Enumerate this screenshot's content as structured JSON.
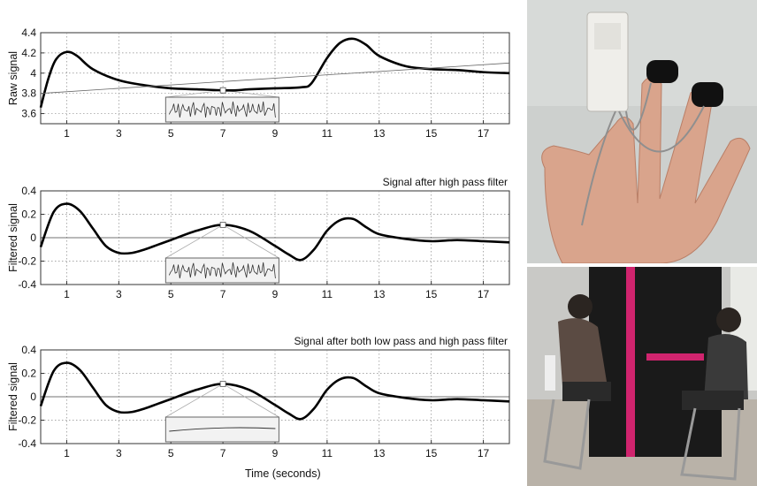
{
  "chart_data": [
    {
      "type": "line",
      "title": "",
      "ylabel": "Raw signal",
      "xlabel": "",
      "xlim": [
        0,
        18
      ],
      "ylim": [
        3.5,
        4.4
      ],
      "xticks": [
        "1",
        "3",
        "5",
        "7",
        "9",
        "11",
        "13",
        "15",
        "17"
      ],
      "yticks": [
        "3.6",
        "3.8",
        "4",
        "4.2",
        "4.4"
      ],
      "grid": true,
      "series": [
        {
          "style": "thick",
          "x": [
            0,
            0.3,
            0.6,
            1,
            1.4,
            2,
            3,
            4,
            5,
            6,
            7,
            7.5,
            8,
            9,
            10,
            10.4,
            11,
            11.5,
            12,
            12.5,
            13,
            14,
            15,
            16,
            17,
            18
          ],
          "y": [
            3.66,
            3.95,
            4.14,
            4.21,
            4.17,
            4.04,
            3.93,
            3.88,
            3.85,
            3.84,
            3.83,
            3.83,
            3.84,
            3.85,
            3.86,
            3.9,
            4.15,
            4.3,
            4.34,
            4.28,
            4.17,
            4.07,
            4.04,
            4.03,
            4.01,
            4.0
          ]
        },
        {
          "style": "trend",
          "x": [
            0,
            18
          ],
          "y": [
            3.8,
            4.1
          ]
        }
      ],
      "inset": "noise"
    },
    {
      "type": "line",
      "title": "Signal after high pass filter",
      "ylabel": "Filtered signal",
      "xlabel": "",
      "xlim": [
        0,
        18
      ],
      "ylim": [
        -0.4,
        0.4
      ],
      "xticks": [
        "1",
        "3",
        "5",
        "7",
        "9",
        "11",
        "13",
        "15",
        "17"
      ],
      "yticks": [
        "0.4",
        "0.2",
        "0",
        "-0.2",
        "-0.4"
      ],
      "grid": true,
      "series": [
        {
          "style": "thick",
          "x": [
            0,
            0.5,
            1,
            1.5,
            2,
            2.5,
            3,
            3.5,
            4,
            4.5,
            5,
            6,
            7,
            8,
            9,
            9.5,
            10,
            10.5,
            11,
            11.5,
            12,
            12.5,
            13,
            14,
            15,
            16,
            17,
            18
          ],
          "y": [
            -0.08,
            0.22,
            0.29,
            0.23,
            0.08,
            -0.07,
            -0.13,
            -0.13,
            -0.1,
            -0.06,
            -0.02,
            0.06,
            0.11,
            0.06,
            -0.07,
            -0.14,
            -0.19,
            -0.1,
            0.06,
            0.15,
            0.16,
            0.09,
            0.03,
            -0.01,
            -0.03,
            -0.02,
            -0.03,
            -0.04
          ]
        }
      ],
      "inset": "noise"
    },
    {
      "type": "line",
      "title": "Signal after both low pass and high pass filter",
      "ylabel": "Filtered signal",
      "xlabel": "Time (seconds)",
      "xlim": [
        0,
        18
      ],
      "ylim": [
        -0.4,
        0.4
      ],
      "xticks": [
        "1",
        "3",
        "5",
        "7",
        "9",
        "11",
        "13",
        "15",
        "17"
      ],
      "yticks": [
        "0.4",
        "0.2",
        "0",
        "-0.2",
        "-0.4"
      ],
      "grid": true,
      "series": [
        {
          "style": "thick",
          "x": [
            0,
            0.5,
            1,
            1.5,
            2,
            2.5,
            3,
            3.5,
            4,
            4.5,
            5,
            6,
            7,
            8,
            9,
            9.5,
            10,
            10.5,
            11,
            11.5,
            12,
            12.5,
            13,
            14,
            15,
            16,
            17,
            18
          ],
          "y": [
            -0.08,
            0.22,
            0.29,
            0.23,
            0.08,
            -0.07,
            -0.13,
            -0.13,
            -0.1,
            -0.06,
            -0.02,
            0.06,
            0.11,
            0.06,
            -0.07,
            -0.14,
            -0.19,
            -0.1,
            0.06,
            0.15,
            0.16,
            0.09,
            0.03,
            -0.01,
            -0.03,
            -0.02,
            -0.03,
            -0.04
          ]
        }
      ],
      "inset": "smooth"
    }
  ],
  "photos": {
    "top": "hand with finger electrode sensors",
    "bottom": "two seated participants on either side of a black partition"
  }
}
